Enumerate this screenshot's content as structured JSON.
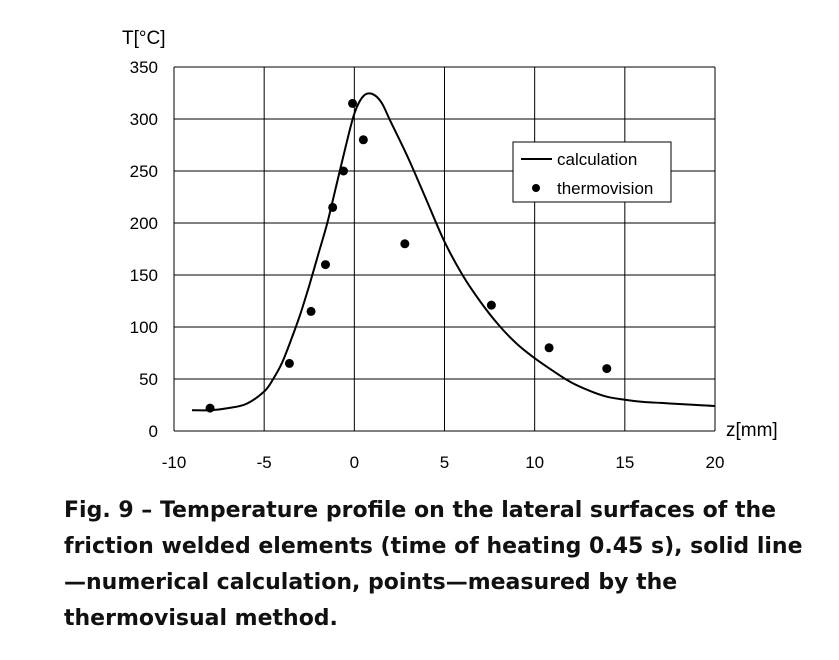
{
  "figure": {
    "caption": "Fig. 9 – Temperature profile on the lateral surfaces of the friction welded elements (time of heating 0.45 s), solid line—numerical calculation, points—measured by the thermovisual method."
  },
  "chart_data": {
    "type": "line",
    "title": "",
    "xlabel": "z[mm]",
    "ylabel": "T[°C]",
    "xlim": [
      -10,
      20
    ],
    "ylim": [
      0,
      350
    ],
    "xticks": [
      -10,
      -5,
      0,
      5,
      10,
      15,
      20
    ],
    "yticks": [
      0,
      50,
      100,
      150,
      200,
      250,
      300,
      350
    ],
    "grid": true,
    "legend_position": "top-right",
    "series": [
      {
        "name": "calculation",
        "style": "solid line",
        "color": "#000000",
        "x": [
          -9,
          -8,
          -7,
          -6,
          -5,
          -4.5,
          -4,
          -3.5,
          -3,
          -2.5,
          -2,
          -1.5,
          -1,
          -0.5,
          0,
          0.5,
          1,
          1.5,
          2,
          3,
          4,
          5,
          6,
          7,
          8,
          9,
          10,
          11,
          12,
          13,
          14,
          15,
          16,
          17,
          18,
          19,
          20
        ],
        "y": [
          20,
          20,
          22,
          26,
          38,
          50,
          66,
          88,
          112,
          140,
          170,
          200,
          236,
          272,
          305,
          322,
          324,
          316,
          298,
          262,
          222,
          182,
          150,
          124,
          102,
          84,
          70,
          58,
          47,
          39,
          33,
          30,
          28,
          27,
          26,
          25,
          24
        ]
      },
      {
        "name": "thermovision",
        "style": "points",
        "color": "#000000",
        "x": [
          -8,
          -3.6,
          -2.4,
          -1.6,
          -1.2,
          -0.6,
          -0.1,
          0.5,
          2.8,
          7.6,
          10.8,
          14
        ],
        "y": [
          22,
          65,
          115,
          160,
          215,
          250,
          315,
          280,
          180,
          121,
          80,
          60
        ]
      }
    ]
  }
}
